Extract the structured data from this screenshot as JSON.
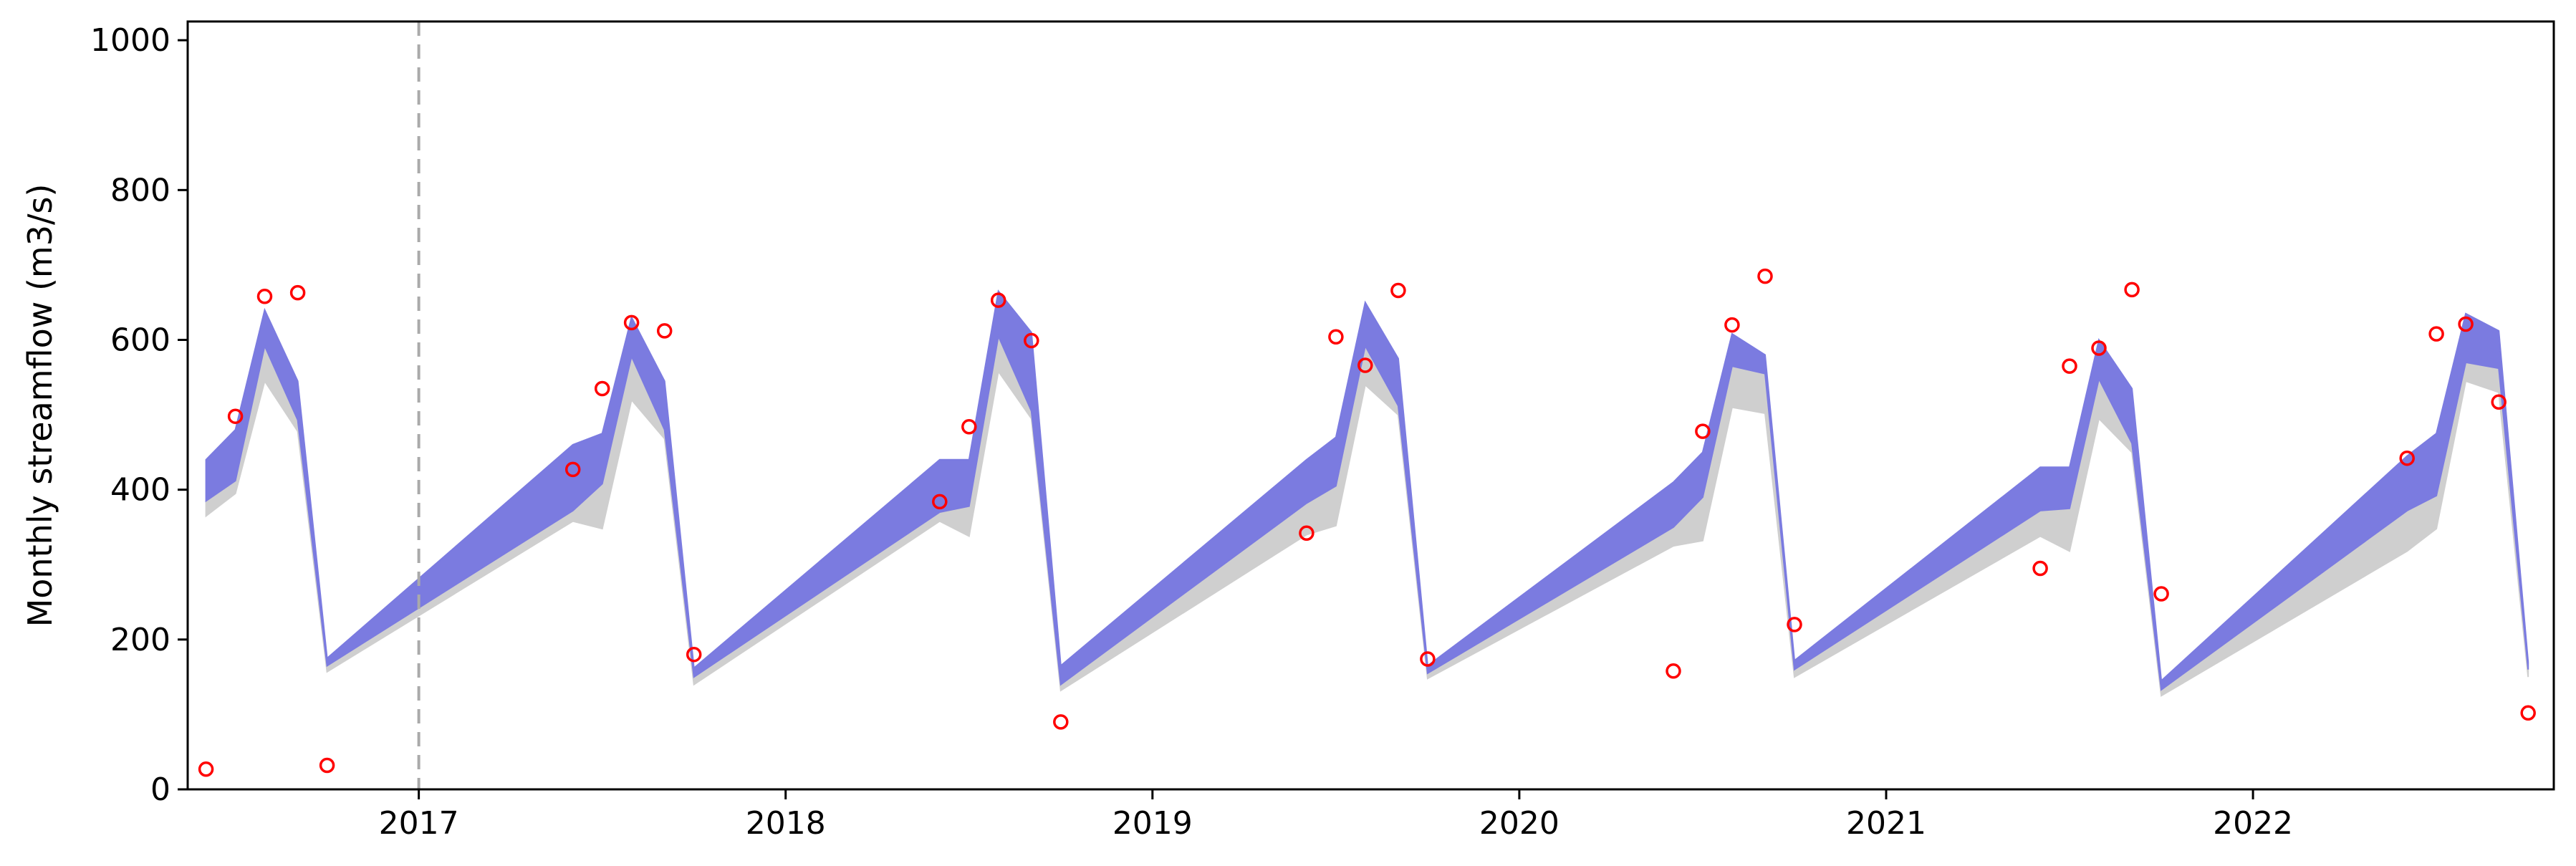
{
  "chart_data": {
    "type": "line",
    "title": "",
    "xlabel": "",
    "ylabel": "Monthly streamflow (m3/s)",
    "ylim": [
      0,
      1025
    ],
    "xlim": [
      2016.37,
      2022.82
    ],
    "yticks": [
      0,
      200,
      400,
      600,
      800,
      1000
    ],
    "xticks": [
      2017,
      2018,
      2019,
      2020,
      2021,
      2022
    ],
    "xtick_labels": [
      "2017",
      "2018",
      "2019",
      "2020",
      "2021",
      "2022"
    ],
    "ytick_labels": [
      "0",
      "200",
      "400",
      "600",
      "800",
      "1000"
    ],
    "vline_x": 2017.0,
    "grid": false,
    "legend": "none",
    "colors": {
      "band_blue": "#7b7be0",
      "band_gray": "#cfcfcf",
      "observed": "#ff0000",
      "vline": "#aaaaaa"
    },
    "series": [
      {
        "kind": "band",
        "color": "band_gray",
        "x": [
          2016.42,
          2016.5,
          2016.58,
          2016.67,
          2016.75,
          2017.42,
          2017.5,
          2017.58,
          2017.67,
          2017.75,
          2018.42,
          2018.5,
          2018.58,
          2018.67,
          2018.75,
          2019.42,
          2019.5,
          2019.58,
          2019.67,
          2019.75,
          2020.42,
          2020.5,
          2020.58,
          2020.67,
          2020.75,
          2021.42,
          2021.5,
          2021.58,
          2021.67,
          2021.75,
          2022.42,
          2022.5,
          2022.58,
          2022.67,
          2022.75
        ],
        "lower": [
          365,
          395,
          545,
          478,
          157,
          358,
          348,
          520,
          468,
          140,
          358,
          338,
          558,
          495,
          132,
          340,
          352,
          540,
          500,
          148,
          325,
          332,
          510,
          502,
          150,
          338,
          318,
          495,
          450,
          125,
          318,
          348,
          545,
          530,
          150
        ],
        "upper": [
          385,
          412,
          592,
          493,
          165,
          372,
          408,
          578,
          480,
          150,
          370,
          378,
          605,
          505,
          140,
          382,
          405,
          592,
          512,
          155,
          350,
          390,
          565,
          555,
          160,
          372,
          375,
          548,
          462,
          133,
          372,
          392,
          570,
          562,
          160
        ]
      },
      {
        "kind": "band",
        "color": "band_blue",
        "x": [
          2016.42,
          2016.5,
          2016.58,
          2016.67,
          2016.75,
          2017.42,
          2017.5,
          2017.58,
          2017.67,
          2017.75,
          2018.42,
          2018.5,
          2018.58,
          2018.67,
          2018.75,
          2019.42,
          2019.5,
          2019.58,
          2019.67,
          2019.75,
          2020.42,
          2020.5,
          2020.58,
          2020.67,
          2020.75,
          2021.42,
          2021.5,
          2021.58,
          2021.67,
          2021.75,
          2022.42,
          2022.5,
          2022.58,
          2022.67,
          2022.75
        ],
        "lower": [
          385,
          412,
          592,
          493,
          165,
          372,
          408,
          578,
          480,
          150,
          370,
          378,
          605,
          505,
          140,
          382,
          405,
          592,
          512,
          155,
          350,
          390,
          565,
          555,
          160,
          372,
          375,
          548,
          462,
          133,
          372,
          392,
          570,
          562,
          160
        ],
        "upper": [
          440,
          480,
          640,
          545,
          175,
          460,
          475,
          630,
          545,
          162,
          440,
          440,
          665,
          610,
          165,
          440,
          470,
          650,
          575,
          165,
          410,
          450,
          608,
          580,
          172,
          430,
          430,
          600,
          535,
          145,
          445,
          475,
          635,
          612,
          170
        ]
      },
      {
        "kind": "points",
        "color": "observed",
        "x": [
          2016.42,
          2016.5,
          2016.58,
          2016.67,
          2016.75,
          2017.42,
          2017.5,
          2017.58,
          2017.67,
          2017.75,
          2018.42,
          2018.5,
          2018.58,
          2018.67,
          2018.75,
          2019.42,
          2019.5,
          2019.58,
          2019.67,
          2019.75,
          2020.42,
          2020.5,
          2020.58,
          2020.67,
          2020.75,
          2021.42,
          2021.5,
          2021.58,
          2021.67,
          2021.75,
          2022.42,
          2022.5,
          2022.58,
          2022.67,
          2022.75
        ],
        "y": [
          27,
          498,
          658,
          663,
          32,
          427,
          535,
          623,
          612,
          180,
          384,
          484,
          653,
          599,
          90,
          342,
          604,
          566,
          666,
          174,
          158,
          478,
          620,
          685,
          220,
          295,
          565,
          589,
          667,
          261,
          442,
          608,
          621,
          517,
          102
        ]
      }
    ]
  }
}
